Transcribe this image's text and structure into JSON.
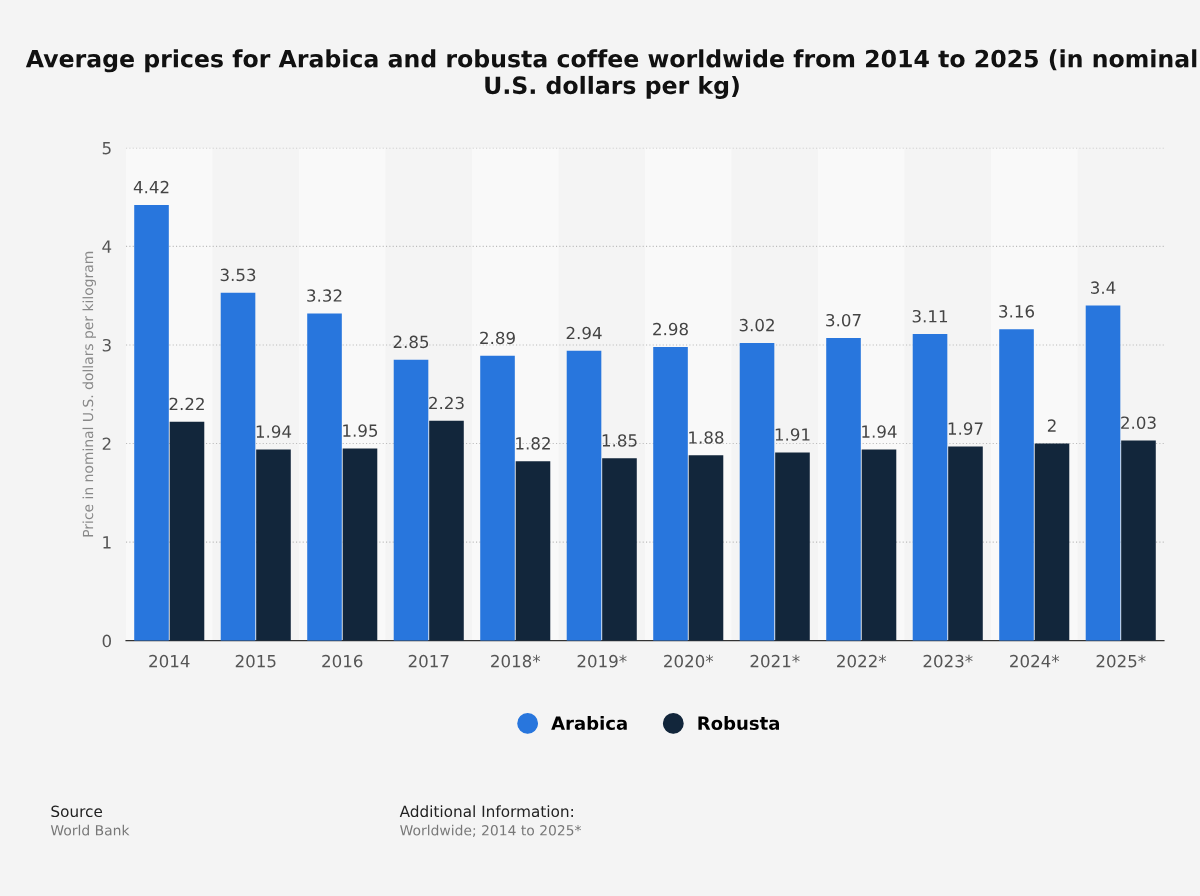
{
  "chart_data": {
    "type": "bar",
    "title": "Average prices for Arabica and robusta coffee worldwide from 2014 to 2025 (in nominal U.S. dollars per kg)",
    "ylabel": "Price in nominal U.S. dollars per kilogram",
    "categories": [
      "2014",
      "2015",
      "2016",
      "2017",
      "2018*",
      "2019*",
      "2020*",
      "2021*",
      "2022*",
      "2023*",
      "2024*",
      "2025*"
    ],
    "series": [
      {
        "name": "Arabica",
        "color": "#2876dd",
        "values": [
          4.42,
          3.53,
          3.32,
          2.85,
          2.89,
          2.94,
          2.98,
          3.02,
          3.07,
          3.11,
          3.16,
          3.4
        ]
      },
      {
        "name": "Robusta",
        "color": "#12263b",
        "values": [
          2.22,
          1.94,
          1.95,
          2.23,
          1.82,
          1.85,
          1.88,
          1.91,
          1.94,
          1.97,
          2,
          2.03
        ]
      }
    ],
    "ylim": [
      0,
      5
    ],
    "yticks": [
      0,
      1,
      2,
      3,
      4,
      5
    ],
    "grid": "y",
    "legend": "bottom",
    "data_labels": true,
    "annotations": [
      "Source",
      "World Bank",
      "Additional Information:",
      "Worldwide; 2014 to 2025*"
    ]
  }
}
